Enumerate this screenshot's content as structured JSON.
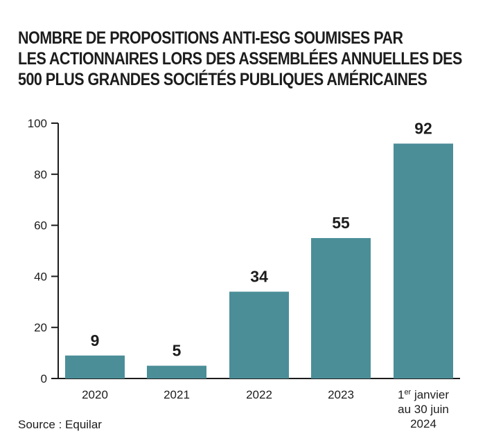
{
  "chart_data": {
    "type": "bar",
    "title_lines": [
      "NOMBRE DE PROPOSITIONS ANTI-ESG SOUMISES PAR",
      "LES ACTIONNAIRES LORS DES ASSEMBLÉES ANNUELLES DES",
      "500 PLUS GRANDES SOCIÉTÉS PUBLIQUES AMÉRICAINES"
    ],
    "categories": [
      {
        "lines": [
          {
            "text": "2020"
          }
        ]
      },
      {
        "lines": [
          {
            "text": "2021"
          }
        ]
      },
      {
        "lines": [
          {
            "text": "2022"
          }
        ]
      },
      {
        "lines": [
          {
            "text": "2023"
          }
        ]
      },
      {
        "lines": [
          {
            "text": "1",
            "sup": "er",
            "rest": " janvier"
          },
          {
            "text": "au 30 juin"
          },
          {
            "text": "2024"
          }
        ]
      }
    ],
    "values": [
      9,
      5,
      34,
      55,
      92
    ],
    "value_labels": [
      "9",
      "5",
      "34",
      "55",
      "92"
    ],
    "ylim": [
      0,
      100
    ],
    "yticks": [
      0,
      20,
      40,
      60,
      80,
      100
    ],
    "xlabel": "",
    "ylabel": "",
    "grid": false,
    "bar_color": "#4b8e98",
    "axis_color": "#1c1c1c"
  },
  "source": "Source : Equilar"
}
